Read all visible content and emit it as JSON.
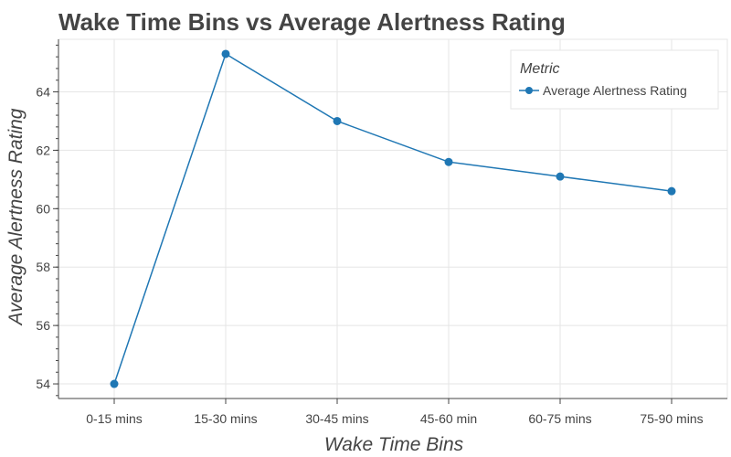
{
  "chart_data": {
    "type": "line",
    "title": "Wake Time Bins vs Average Alertness Rating",
    "xlabel": "Wake Time Bins",
    "ylabel": "Average Alertness Rating",
    "categories": [
      "0-15 mins",
      "15-30 mins",
      "30-45 mins",
      "45-60 min",
      "60-75 mins",
      "75-90 mins"
    ],
    "series": [
      {
        "name": "Average Alertness Rating",
        "values": [
          54.0,
          65.3,
          63.0,
          61.6,
          61.1,
          60.6
        ],
        "color": "#1f77b4"
      }
    ],
    "ylim": [
      53.5,
      65.8
    ],
    "yticks": [
      54,
      56,
      58,
      60,
      62,
      64
    ],
    "grid": true,
    "legend": {
      "title": "Metric",
      "position": "top-right"
    }
  }
}
